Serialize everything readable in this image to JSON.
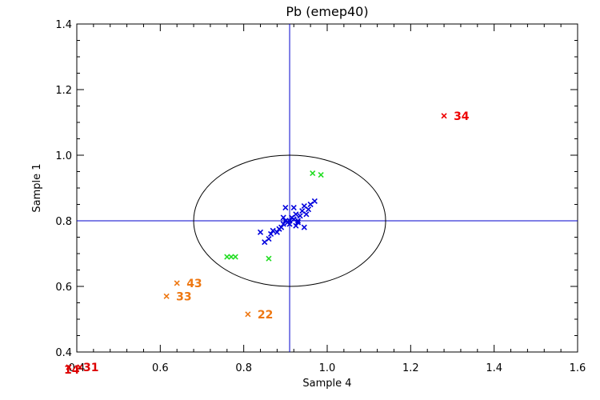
{
  "chart_data": {
    "type": "scatter",
    "title": "Pb (emep40)",
    "xlabel": "Sample 4",
    "ylabel": "Sample 1",
    "xlim": [
      0.4,
      1.6
    ],
    "ylim": [
      0.4,
      1.4
    ],
    "x_ticks": [
      "0.4",
      "0.6",
      "0.8",
      "1.0",
      "1.2",
      "1.4",
      "1.6"
    ],
    "y_ticks": [
      "0.4",
      "0.6",
      "0.8",
      "1.0",
      "1.2",
      "1.4"
    ],
    "grid": false,
    "reference_lines": {
      "x": 0.91,
      "y": 0.8,
      "color": "#0000cc"
    },
    "ellipse": {
      "cx": 0.91,
      "cy": 0.8,
      "rx": 0.23,
      "ry": 0.2,
      "color": "#000000"
    },
    "series": [
      {
        "color": "#0000dd",
        "points": [
          [
            0.84,
            0.765
          ],
          [
            0.85,
            0.735
          ],
          [
            0.86,
            0.745
          ],
          [
            0.865,
            0.76
          ],
          [
            0.87,
            0.77
          ],
          [
            0.88,
            0.765
          ],
          [
            0.885,
            0.775
          ],
          [
            0.89,
            0.78
          ],
          [
            0.895,
            0.79
          ],
          [
            0.9,
            0.8
          ],
          [
            0.905,
            0.795
          ],
          [
            0.91,
            0.8
          ],
          [
            0.9,
            0.84
          ],
          [
            0.915,
            0.81
          ],
          [
            0.92,
            0.805
          ],
          [
            0.925,
            0.82
          ],
          [
            0.93,
            0.8
          ],
          [
            0.935,
            0.815
          ],
          [
            0.92,
            0.84
          ],
          [
            0.94,
            0.83
          ],
          [
            0.945,
            0.845
          ],
          [
            0.95,
            0.82
          ],
          [
            0.96,
            0.85
          ],
          [
            0.97,
            0.86
          ],
          [
            0.945,
            0.78
          ],
          [
            0.925,
            0.785
          ],
          [
            0.93,
            0.795
          ],
          [
            0.895,
            0.81
          ],
          [
            0.91,
            0.79
          ],
          [
            0.955,
            0.835
          ]
        ]
      },
      {
        "color": "#22dd22",
        "points": [
          [
            0.76,
            0.69
          ],
          [
            0.77,
            0.69
          ],
          [
            0.78,
            0.69
          ],
          [
            0.86,
            0.685
          ],
          [
            0.965,
            0.945
          ],
          [
            0.985,
            0.94
          ]
        ]
      },
      {
        "color": "#ee7711",
        "points": [
          [
            0.64,
            0.61
          ],
          [
            0.615,
            0.57
          ],
          [
            0.81,
            0.515
          ]
        ],
        "labels": [
          "43",
          "33",
          "22"
        ]
      },
      {
        "color": "#ee0000",
        "points": [
          [
            1.28,
            1.12
          ]
        ],
        "labels": [
          "34"
        ]
      }
    ],
    "annotations": [
      {
        "text": "31",
        "color": "#dd0000"
      },
      {
        "text": "14",
        "color": "#dd0000"
      }
    ]
  }
}
